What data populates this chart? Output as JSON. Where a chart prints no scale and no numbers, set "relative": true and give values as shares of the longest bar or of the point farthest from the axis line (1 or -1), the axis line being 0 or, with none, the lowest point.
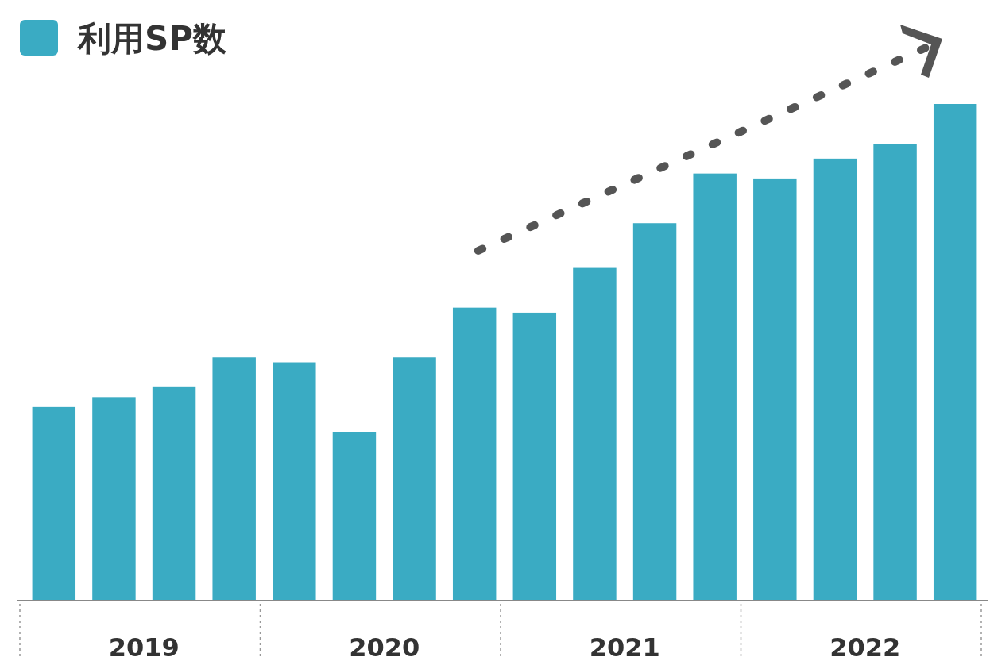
{
  "chart_data": {
    "type": "bar",
    "relative": true,
    "legend": "top left",
    "categories": [
      null,
      null,
      null,
      null,
      null,
      null,
      null,
      null,
      null,
      null,
      null,
      null,
      null,
      null,
      null,
      null
    ],
    "series": [
      {
        "name": "利用SP数",
        "color": "#3aabc3",
        "values": [
          0.39,
          0.41,
          0.43,
          0.49,
          0.48,
          0.34,
          0.49,
          0.59,
          0.58,
          0.67,
          0.76,
          0.86,
          0.85,
          0.89,
          0.92,
          1
        ]
      }
    ],
    "annotations": [
      "2019",
      "2020",
      "2021",
      "2022"
    ]
  }
}
